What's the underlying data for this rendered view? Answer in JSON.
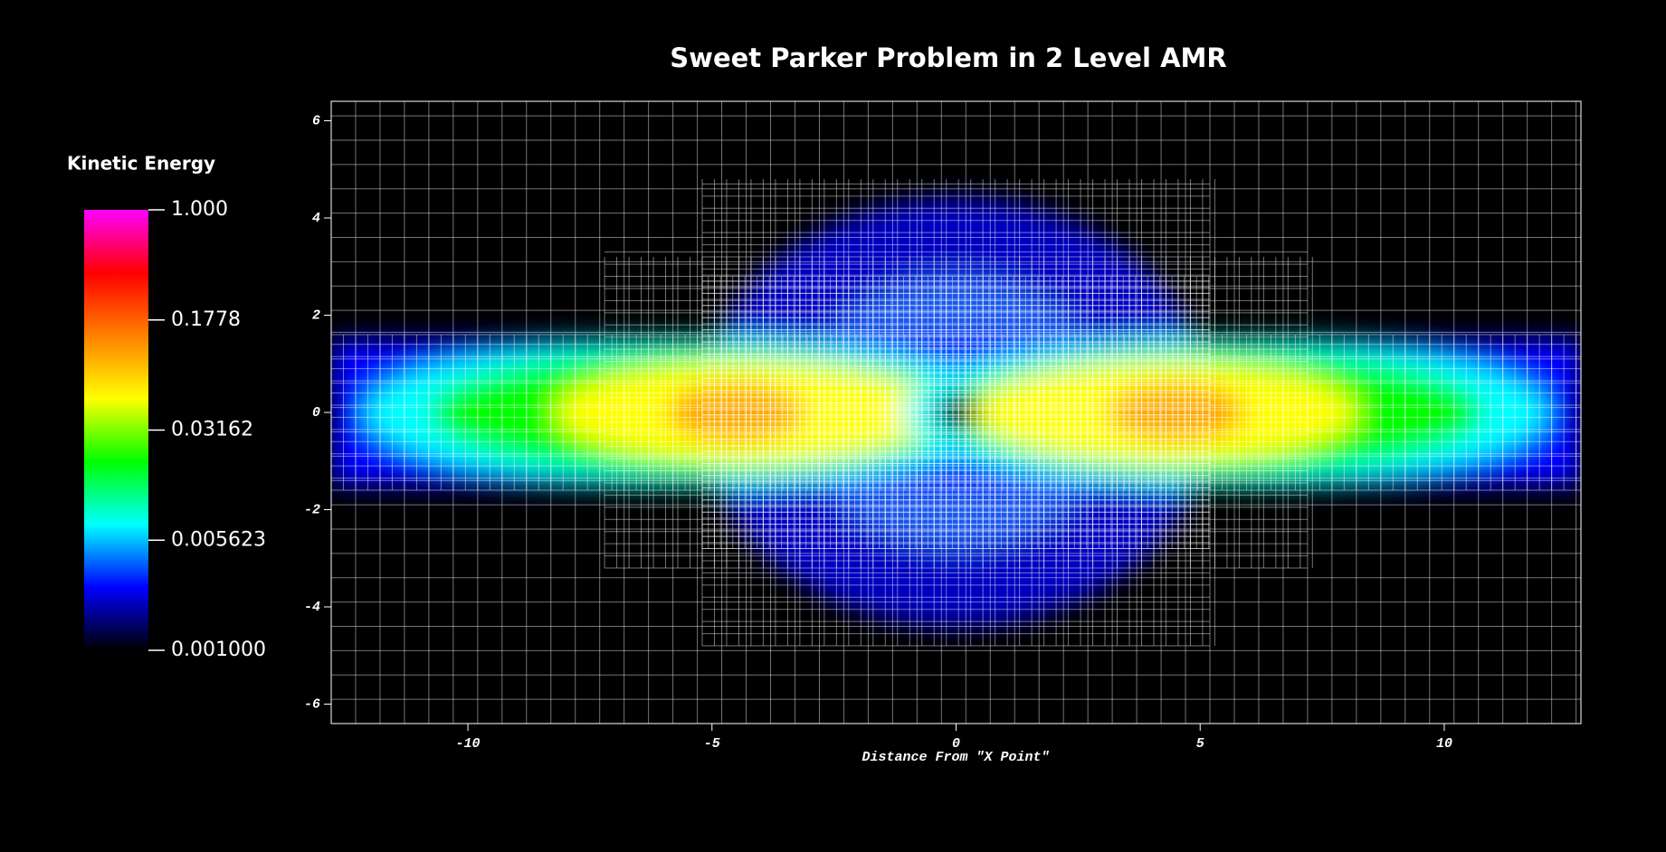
{
  "chart_data": {
    "type": "heatmap",
    "title": "Sweet Parker Problem in 2 Level AMR",
    "xlabel": "Distance From \"X Point\"",
    "xlim": [
      -12.8,
      12.8
    ],
    "ylim": [
      -6.4,
      6.4
    ],
    "xticks": [
      -10,
      -5,
      0,
      5,
      10
    ],
    "yticks": [
      -6,
      -4,
      -2,
      0,
      2,
      4,
      6
    ],
    "colorbar": {
      "title": "Kinetic Energy",
      "scale": "log",
      "lim": [
        0.001,
        1
      ],
      "ticks": [
        {
          "value": 1,
          "label": "1.000"
        },
        {
          "value": 0.1778,
          "label": "0.1778"
        },
        {
          "value": 0.03162,
          "label": "0.03162"
        },
        {
          "value": 0.005623,
          "label": "0.005623"
        },
        {
          "value": 0.001,
          "label": "0.001000"
        }
      ],
      "colors": [
        "#000000",
        "#0000ff",
        "#00ffff",
        "#00ff00",
        "#ffff00",
        "#ff8000",
        "#ff0000",
        "#ff00ff"
      ]
    },
    "amr_patches": [
      {
        "x": [
          -12.8,
          12.8
        ],
        "y": [
          -6.4,
          6.4
        ],
        "dx": 0.5
      },
      {
        "x": [
          -12.8,
          12.8
        ],
        "y": [
          -1.6,
          1.6
        ],
        "dx": 0.25
      },
      {
        "x": [
          -7.2,
          7.2
        ],
        "y": [
          -3.2,
          3.2
        ],
        "dx": 0.25
      },
      {
        "x": [
          -5.2,
          5.2
        ],
        "y": [
          -4.8,
          4.8
        ],
        "dx": 0.25
      },
      {
        "x": [
          -5.2,
          5.2
        ],
        "y": [
          -2.8,
          2.8
        ],
        "dx": 0.125
      }
    ]
  }
}
